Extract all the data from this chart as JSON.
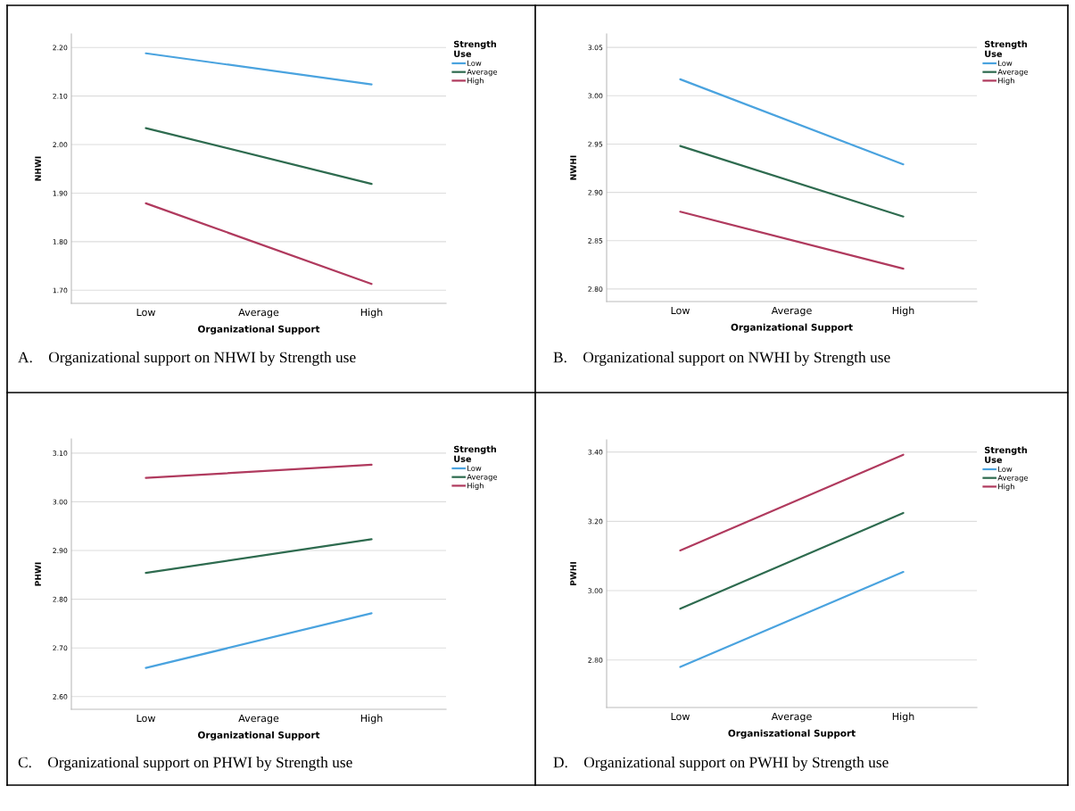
{
  "chart_data": [
    {
      "type": "line",
      "xlabel": "Organizational Support",
      "ylabel": "NHWI",
      "legend_title": "Strength\nUse",
      "legend": "top right",
      "grid": "y",
      "categories": [
        "Low",
        "Average",
        "High"
      ],
      "ylim": [
        1.673,
        2.228
      ],
      "yticks": [
        {
          "value": 1.7,
          "label": "1.70"
        },
        {
          "value": 1.8,
          "label": "1.80"
        },
        {
          "value": 1.9,
          "label": "1.90"
        },
        {
          "value": 2.0,
          "label": "2.00"
        },
        {
          "value": 2.1,
          "label": "2.10"
        },
        {
          "value": 2.2,
          "label": "2.20"
        }
      ],
      "annotations": [
        "A.    Organizational support on NHWI by Strength use"
      ],
      "series": [
        {
          "name": "Low",
          "color": "#4aa3df",
          "values": [
            2.188,
            null,
            2.124
          ]
        },
        {
          "name": "Average",
          "color": "#2e6b4f",
          "values": [
            2.034,
            null,
            1.919
          ]
        },
        {
          "name": "High",
          "color": "#b03a5e",
          "values": [
            1.879,
            null,
            1.713
          ]
        }
      ]
    },
    {
      "type": "line",
      "xlabel": "Organizational Support",
      "ylabel": "NWHI",
      "legend_title": "Strength\nUse",
      "legend": "top right",
      "grid": "y",
      "categories": [
        "Low",
        "Average",
        "High"
      ],
      "ylim": [
        2.787,
        3.064
      ],
      "yticks": [
        {
          "value": 2.8,
          "label": "2.80"
        },
        {
          "value": 2.85,
          "label": "2.85"
        },
        {
          "value": 2.9,
          "label": "2.90"
        },
        {
          "value": 2.95,
          "label": "2.95"
        },
        {
          "value": 3.0,
          "label": "3.00"
        },
        {
          "value": 3.05,
          "label": "3.05"
        }
      ],
      "annotations": [
        "B.    Organizational support on NWHI by Strength use"
      ],
      "series": [
        {
          "name": "Low",
          "color": "#4aa3df",
          "values": [
            3.017,
            null,
            2.929
          ]
        },
        {
          "name": "Average",
          "color": "#2e6b4f",
          "values": [
            2.948,
            null,
            2.875
          ]
        },
        {
          "name": "High",
          "color": "#b03a5e",
          "values": [
            2.88,
            null,
            2.821
          ]
        }
      ]
    },
    {
      "type": "line",
      "xlabel": "Organizational Support",
      "ylabel": "PHWI",
      "legend_title": "Strength\nUse",
      "legend": "top right",
      "grid": "y",
      "categories": [
        "Low",
        "Average",
        "High"
      ],
      "ylim": [
        2.574,
        3.129
      ],
      "yticks": [
        {
          "value": 2.6,
          "label": "2.60"
        },
        {
          "value": 2.7,
          "label": "2.70"
        },
        {
          "value": 2.8,
          "label": "2.80"
        },
        {
          "value": 2.9,
          "label": "2.90"
        },
        {
          "value": 3.0,
          "label": "3.00"
        },
        {
          "value": 3.1,
          "label": "3.10"
        }
      ],
      "annotations": [
        "C.    Organizational support on PHWI by Strength use"
      ],
      "series": [
        {
          "name": "Low",
          "color": "#4aa3df",
          "values": [
            2.659,
            null,
            2.771
          ]
        },
        {
          "name": "Average",
          "color": "#2e6b4f",
          "values": [
            2.854,
            null,
            2.923
          ]
        },
        {
          "name": "High",
          "color": "#b03a5e",
          "values": [
            3.049,
            null,
            3.076
          ]
        }
      ]
    },
    {
      "type": "line",
      "xlabel": "Organiszational Support",
      "ylabel": "PWHI",
      "legend_title": "Strength\nUse",
      "legend": "top right",
      "grid": "y",
      "categories": [
        "Low",
        "Average",
        "High"
      ],
      "ylim": [
        2.663,
        3.435
      ],
      "yticks": [
        {
          "value": 2.8,
          "label": "2.80"
        },
        {
          "value": 3.0,
          "label": "3.00"
        },
        {
          "value": 3.2,
          "label": "3.20"
        },
        {
          "value": 3.4,
          "label": "3.40"
        }
      ],
      "annotations": [
        "D.    Organizational support on PWHI by Strength use"
      ],
      "series": [
        {
          "name": "Low",
          "color": "#4aa3df",
          "values": [
            2.78,
            null,
            3.054
          ]
        },
        {
          "name": "Average",
          "color": "#2e6b4f",
          "values": [
            2.948,
            null,
            3.224
          ]
        },
        {
          "name": "High",
          "color": "#b03a5e",
          "values": [
            3.116,
            null,
            3.392
          ]
        }
      ]
    }
  ]
}
